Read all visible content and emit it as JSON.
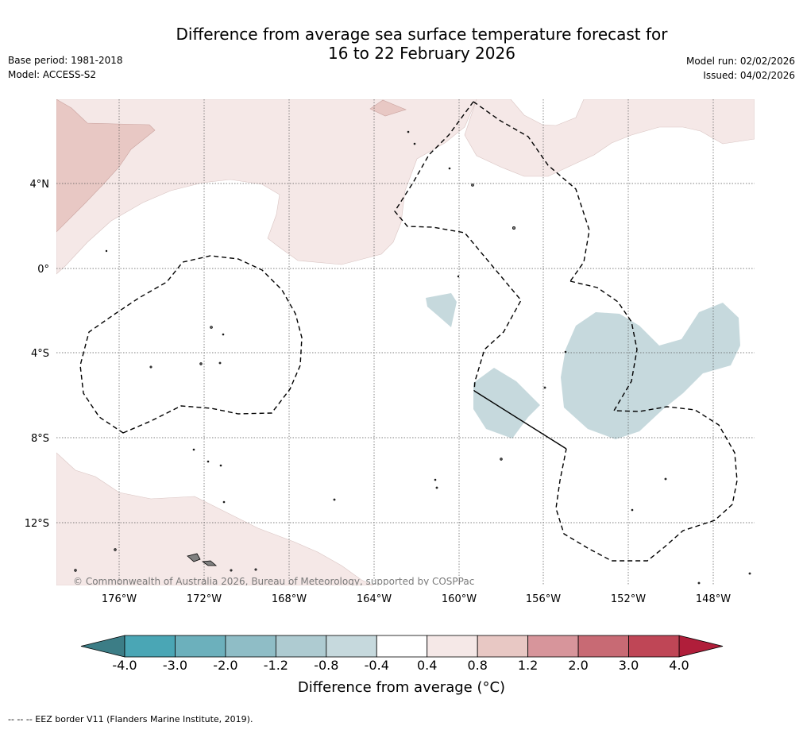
{
  "title": {
    "line1": "Difference from average sea surface temperature forecast for",
    "line2": "16 to 22 February 2026"
  },
  "meta": {
    "base_period": "Base period: 1981-2018",
    "model": "Model: ACCESS-S2",
    "model_run": "Model run: 02/02/2026",
    "issued": "Issued: 04/02/2026"
  },
  "map": {
    "lat_labels": [
      "4°N",
      "0°",
      "4°S",
      "8°S",
      "12°S"
    ],
    "lon_labels": [
      "176°W",
      "172°W",
      "168°W",
      "164°W",
      "160°W",
      "156°W",
      "152°W",
      "148°W"
    ],
    "copyright": "© Commonwealth of Australia 2026, Bureau of Meteorology, supported by COSPPac"
  },
  "colorbar": {
    "ticks": [
      "-4.0",
      "-3.0",
      "-2.0",
      "-1.2",
      "-0.8",
      "-0.4",
      "0.4",
      "0.8",
      "1.2",
      "2.0",
      "3.0",
      "4.0"
    ],
    "label": "Difference from average (°C)",
    "colors": [
      "#4aa6b5",
      "#6cb0bc",
      "#8fbdc6",
      "#aecbd1",
      "#c6d9dd",
      "#ffffff",
      "#f5e8e7",
      "#e8c8c4",
      "#d7959b",
      "#c86a74",
      "#bf4656"
    ],
    "under_color": "#3c7d86",
    "over_color": "#b01e3a"
  },
  "legend": {
    "eez": "-- -- -- EEZ border V11 (Flanders Marine Institute, 2019)."
  }
}
